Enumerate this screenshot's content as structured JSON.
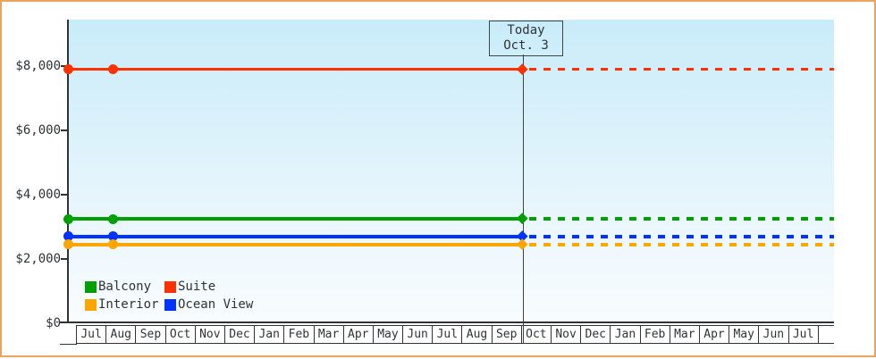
{
  "chart_data": {
    "type": "line",
    "title": "",
    "y_axis": {
      "min": 0,
      "max": 8000,
      "tick_step": 2000,
      "tick_labels": [
        {
          "text": "$8,000",
          "value": 8000
        },
        {
          "text": "$6,000",
          "value": 6000
        },
        {
          "text": "$4,000",
          "value": 4000
        },
        {
          "text": "$2,000",
          "value": 2000
        },
        {
          "text": "$0",
          "value": 0
        }
      ]
    },
    "x_axis": {
      "unit": "month",
      "labels": [
        "Jul",
        "Aug",
        "Sep",
        "Oct",
        "Nov",
        "Dec",
        "Jan",
        "Feb",
        "Mar",
        "Apr",
        "May",
        "Jun",
        "Jul",
        "Aug",
        "Sep",
        "Oct",
        "Nov",
        "Dec",
        "Jan",
        "Feb",
        "Mar",
        "Apr",
        "May",
        "Jun",
        "Jul"
      ]
    },
    "today_annotation": {
      "line1": "Today",
      "line2": "Oct. 3",
      "position_note": "at boundary of second-year Sep/Oct; lines solid before, dashed after"
    },
    "series": [
      {
        "name": "Suite",
        "color": "#ff3000",
        "value": 7900,
        "style": "solid-then-dashed",
        "marker_dates": [
          "early Jul",
          "early Aug",
          "Oct 3 (today)"
        ]
      },
      {
        "name": "Balcony",
        "color": "#00a000",
        "value": 3250,
        "style": "solid-then-dashed",
        "marker_dates": [
          "early Jul",
          "early Aug",
          "Oct 3 (today)"
        ]
      },
      {
        "name": "Ocean View",
        "color": "#0033ff",
        "value": 2700,
        "style": "solid-then-dashed",
        "marker_dates": [
          "early Jul",
          "early Aug",
          "Oct 3 (today)"
        ]
      },
      {
        "name": "Interior",
        "color": "#ffa500",
        "value": 2450,
        "style": "solid-then-dashed",
        "marker_dates": [
          "early Jul",
          "early Aug",
          "Oct 3 (today)"
        ]
      }
    ],
    "legend": {
      "position": "bottom-left",
      "entries": [
        {
          "label": "Balcony",
          "color": "#00a000"
        },
        {
          "label": "Suite",
          "color": "#ff3000"
        },
        {
          "label": "Interior",
          "color": "#ffa500"
        },
        {
          "label": "Ocean View",
          "color": "#0033ff"
        }
      ]
    },
    "grid": "off"
  },
  "colors": {
    "frame_border": "#e8a55c",
    "axis": "#2e3436",
    "plot_background_top": "#c9ecfa",
    "plot_background_bottom": "#f8fcfe"
  }
}
